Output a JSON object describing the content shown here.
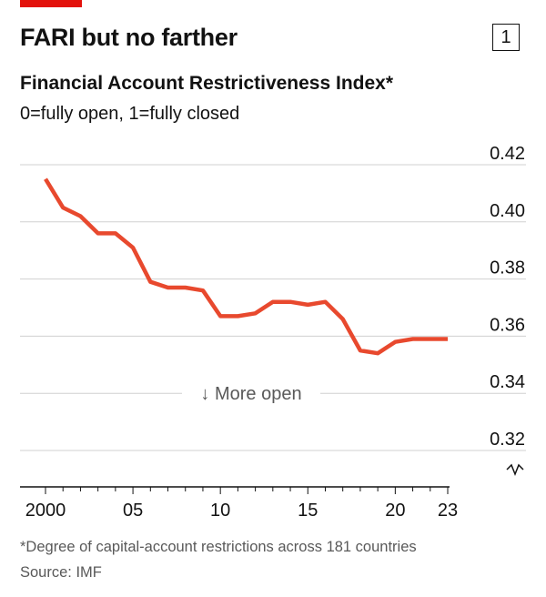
{
  "header": {
    "title": "FARI but no farther",
    "badge": "1",
    "subtitle": "Financial Account Restrictiveness Index*",
    "unit_note": "0=fully open, 1=fully closed"
  },
  "footer": {
    "footnote": "*Degree of capital-account restrictions across 181 countries",
    "source": "Source: IMF"
  },
  "colors": {
    "line": "#e8492e",
    "accent": "#e3120b",
    "grid": "#d0d0d0",
    "annotation": "#595959"
  },
  "chart_data": {
    "type": "line",
    "title": "FARI but no farther",
    "subtitle": "Financial Account Restrictiveness Index*",
    "xlabel": "",
    "ylabel": "0=fully open, 1=fully closed",
    "ylim": [
      0.32,
      0.42
    ],
    "xlim": [
      2000,
      2023
    ],
    "y_axis_broken": true,
    "yticks": [
      0.42,
      0.4,
      0.38,
      0.36,
      0.34,
      0.32
    ],
    "ytick_labels": [
      "0.42",
      "0.40",
      "0.38",
      "0.36",
      "0.34",
      "0.32"
    ],
    "xticks": [
      2000,
      2005,
      2010,
      2015,
      2020,
      2023
    ],
    "xtick_labels": [
      "2000",
      "05",
      "10",
      "15",
      "20",
      "23"
    ],
    "annotation": "↓ More open",
    "series": [
      {
        "name": "Financial Account Restrictiveness Index",
        "x": [
          2000,
          2001,
          2002,
          2003,
          2004,
          2005,
          2006,
          2007,
          2008,
          2009,
          2010,
          2011,
          2012,
          2013,
          2014,
          2015,
          2016,
          2017,
          2018,
          2019,
          2020,
          2021,
          2022,
          2023
        ],
        "values": [
          0.415,
          0.405,
          0.402,
          0.396,
          0.396,
          0.391,
          0.379,
          0.377,
          0.377,
          0.376,
          0.367,
          0.367,
          0.368,
          0.372,
          0.372,
          0.371,
          0.372,
          0.366,
          0.355,
          0.354,
          0.358,
          0.359,
          0.359,
          0.359
        ]
      }
    ]
  }
}
